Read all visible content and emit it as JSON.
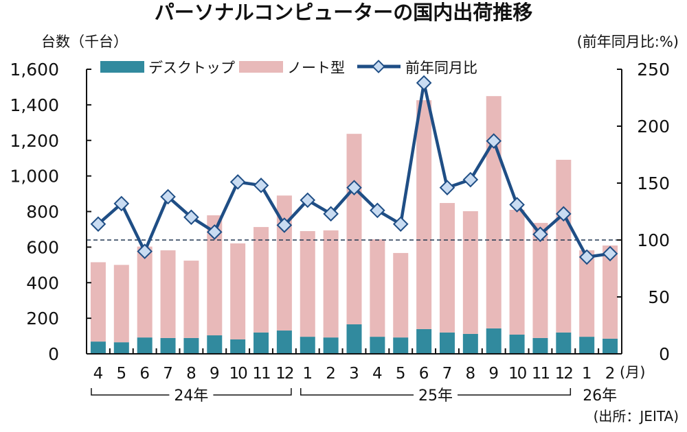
{
  "chart_data": {
    "type": "bar",
    "title": "パーソナルコンピューターの国内出荷推移",
    "ylabel": "台数（千台）",
    "y2label": "(前年同月比:%)",
    "xunit": "(月)",
    "source": "(出所：JEITA)",
    "ylim": [
      0,
      1600
    ],
    "yticks": [
      0,
      200,
      400,
      600,
      800,
      1000,
      1200,
      1400,
      1600
    ],
    "ytick_labels": [
      "0",
      "200",
      "400",
      "600",
      "800",
      "1,000",
      "1,200",
      "1,400",
      "1,600"
    ],
    "y2lim": [
      0,
      250
    ],
    "y2ticks": [
      0,
      50,
      100,
      150,
      200,
      250
    ],
    "reference_line": 100,
    "categories": [
      "4",
      "5",
      "6",
      "7",
      "8",
      "9",
      "10",
      "11",
      "12",
      "1",
      "2",
      "3",
      "4",
      "5",
      "6",
      "7",
      "8",
      "9",
      "10",
      "11",
      "12",
      "1",
      "2"
    ],
    "groups": [
      {
        "label": "24年",
        "from": 0,
        "to": 8
      },
      {
        "label": "25年",
        "from": 9,
        "to": 20
      },
      {
        "label": "26年",
        "from": 21,
        "to": 22
      }
    ],
    "legend": [
      "デスクトップ",
      "ノート型",
      "前年同月比"
    ],
    "legend_position": "top",
    "series": [
      {
        "name": "デスクトップ",
        "type": "bar",
        "axis": "left",
        "color": "#318A9E",
        "values": [
          69,
          65,
          92,
          89,
          89,
          104,
          81,
          120,
          131,
          96,
          92,
          166,
          96,
          92,
          139,
          120,
          112,
          143,
          108,
          89,
          120,
          96,
          85
        ]
      },
      {
        "name": "ノート型",
        "type": "bar",
        "axis": "left",
        "color": "#E8B9B9",
        "values": [
          446,
          435,
          511,
          493,
          435,
          675,
          540,
          593,
          759,
          594,
          602,
          1071,
          548,
          475,
          1287,
          728,
          690,
          1306,
          702,
          647,
          971,
          486,
          524
        ]
      },
      {
        "name": "前年同月比",
        "type": "line",
        "axis": "right",
        "color": "#1F4E85",
        "values": [
          114,
          132,
          90,
          138,
          120,
          107,
          151,
          148,
          113,
          135,
          123,
          146,
          126,
          114,
          238,
          146,
          153,
          187,
          131,
          105,
          123,
          85,
          88
        ]
      }
    ]
  }
}
